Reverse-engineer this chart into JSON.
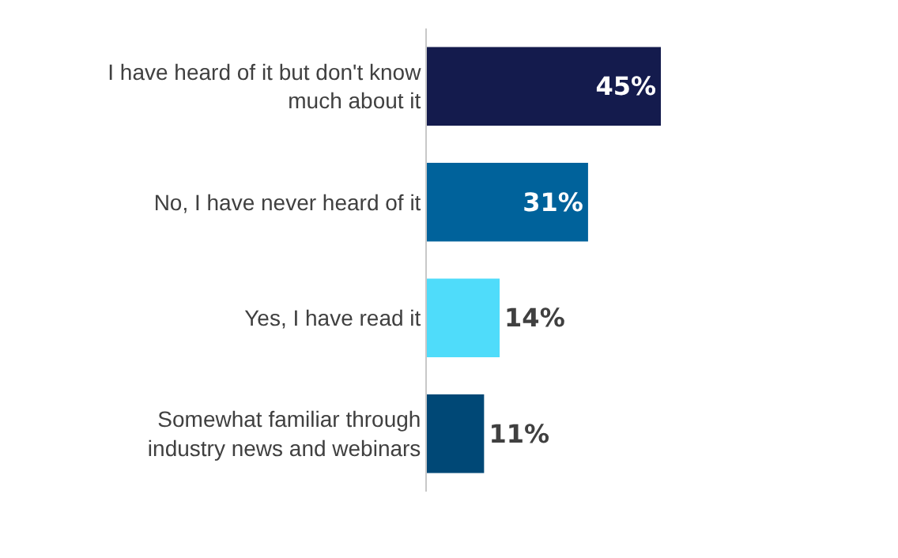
{
  "chart_data": {
    "type": "bar",
    "orientation": "horizontal",
    "categories": [
      "I have heard of it but don't know much about it",
      "No, I have never heard of it",
      "Yes, I have read it",
      "Somewhat familiar through industry news and webinars"
    ],
    "values": [
      45,
      31,
      14,
      11
    ],
    "colors": [
      "#141b4d",
      "#00629b",
      "#4fdcfa",
      "#004876"
    ],
    "value_labels": [
      "45%",
      "31%",
      "14%",
      "11%"
    ]
  }
}
